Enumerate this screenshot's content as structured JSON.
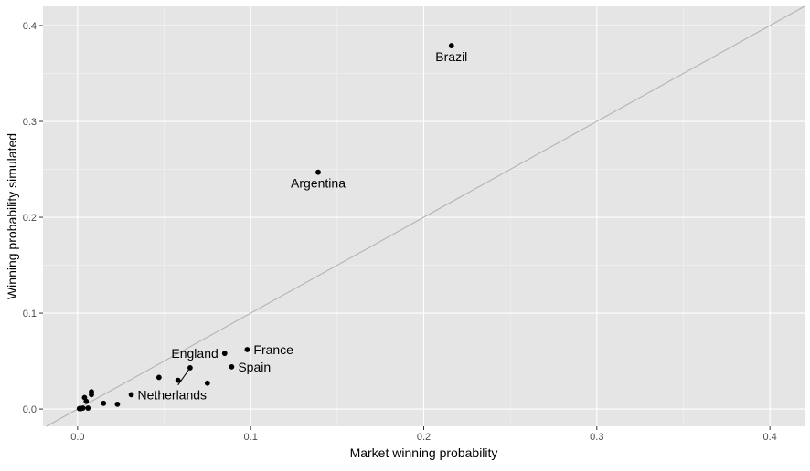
{
  "chart_data": {
    "type": "scatter",
    "title": "",
    "xlabel": "Market winning probability",
    "ylabel": "Winning probability simulated",
    "xlim": [
      -0.02,
      0.42
    ],
    "ylim": [
      -0.018,
      0.42
    ],
    "x_ticks": [
      0.0,
      0.1,
      0.2,
      0.3,
      0.4
    ],
    "x_tick_labels": [
      "0.0",
      "0.1",
      "0.2",
      "0.3",
      "0.4"
    ],
    "y_ticks": [
      0.0,
      0.1,
      0.2,
      0.3,
      0.4
    ],
    "y_tick_labels": [
      "0.0",
      "0.1",
      "0.2",
      "0.3",
      "0.4"
    ],
    "grid": true,
    "reference_line": {
      "type": "identity",
      "color": "#b3b3b3"
    },
    "colors": {
      "panel": "#e5e5e5",
      "grid": "#ffffff",
      "point": "#000000"
    },
    "points": [
      {
        "x": 0.216,
        "y": 0.379,
        "label": "Brazil"
      },
      {
        "x": 0.139,
        "y": 0.247,
        "label": "Argentina"
      },
      {
        "x": 0.098,
        "y": 0.062,
        "label": "France"
      },
      {
        "x": 0.085,
        "y": 0.058,
        "label": "England"
      },
      {
        "x": 0.089,
        "y": 0.044,
        "label": "Spain"
      },
      {
        "x": 0.031,
        "y": 0.015,
        "label": "Netherlands"
      },
      {
        "x": 0.065,
        "y": 0.043,
        "label": ""
      },
      {
        "x": 0.047,
        "y": 0.033,
        "label": ""
      },
      {
        "x": 0.058,
        "y": 0.03,
        "label": ""
      },
      {
        "x": 0.075,
        "y": 0.027,
        "label": ""
      },
      {
        "x": 0.023,
        "y": 0.005,
        "label": ""
      },
      {
        "x": 0.015,
        "y": 0.006,
        "label": ""
      },
      {
        "x": 0.008,
        "y": 0.018,
        "label": ""
      },
      {
        "x": 0.008,
        "y": 0.015,
        "label": ""
      },
      {
        "x": 0.004,
        "y": 0.012,
        "label": ""
      },
      {
        "x": 0.005,
        "y": 0.008,
        "label": ""
      },
      {
        "x": 0.006,
        "y": 0.001,
        "label": ""
      },
      {
        "x": 0.003,
        "y": 0.001,
        "label": ""
      },
      {
        "x": 0.002,
        "y": 0.0005,
        "label": ""
      },
      {
        "x": 0.001,
        "y": 0.0005,
        "label": ""
      }
    ]
  }
}
